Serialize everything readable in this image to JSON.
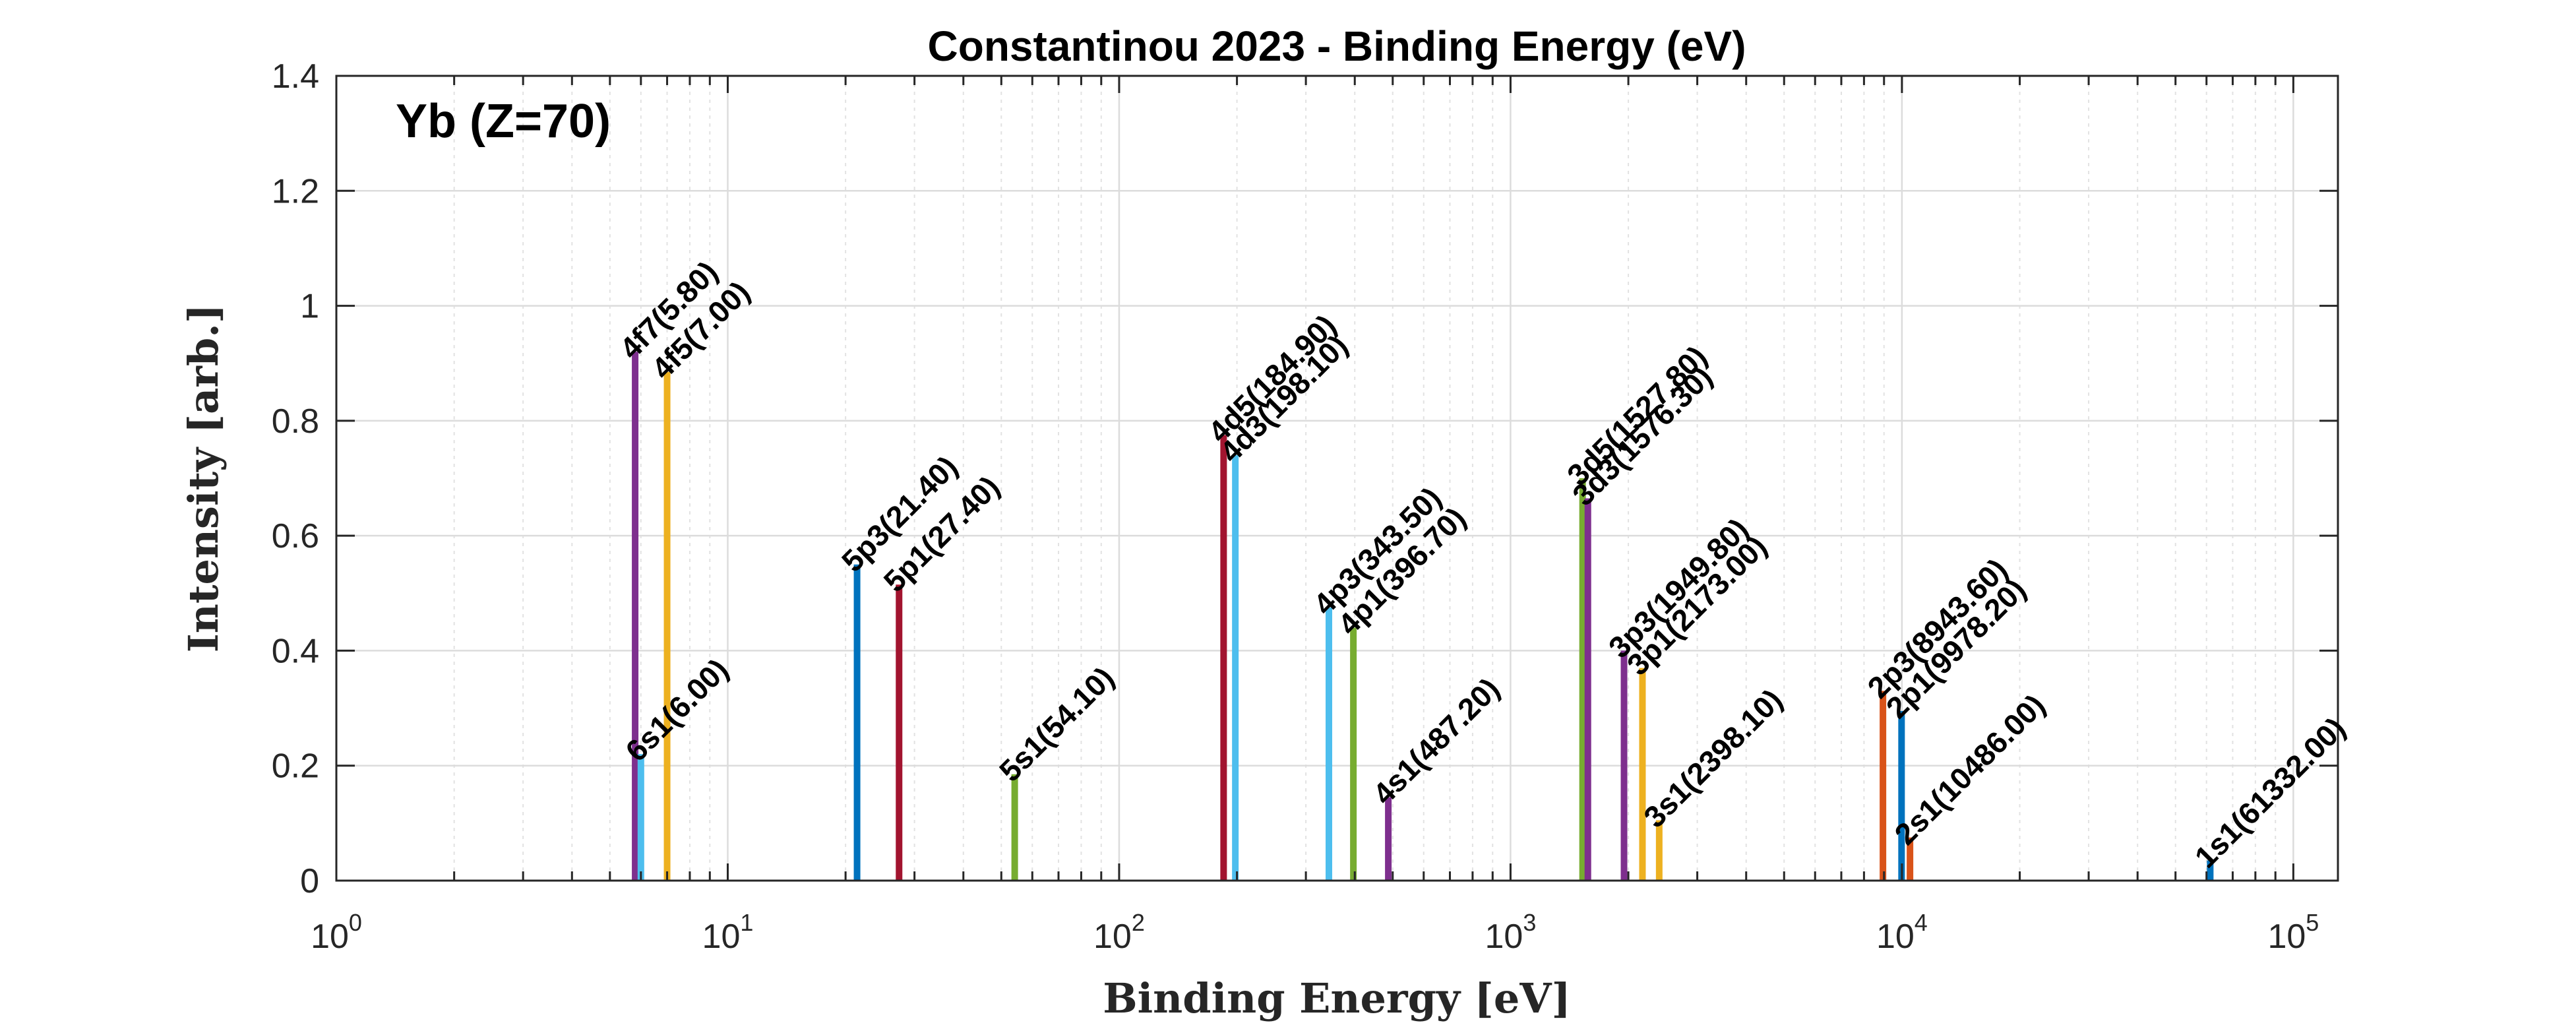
{
  "chart_data": {
    "type": "bar",
    "title": "Constantinou 2023 - Binding Energy (eV)",
    "xlabel": "Binding Energy [eV]",
    "ylabel": "Intensity [arb.]",
    "annotation": "Yb (Z=70)",
    "x_scale": "log",
    "xlim": [
      1,
      130000
    ],
    "ylim": [
      0,
      1.4
    ],
    "grid": true,
    "x_ticks": [
      {
        "value": 1,
        "base": "10",
        "exp": "0"
      },
      {
        "value": 10,
        "base": "10",
        "exp": "1"
      },
      {
        "value": 100,
        "base": "10",
        "exp": "2"
      },
      {
        "value": 1000,
        "base": "10",
        "exp": "3"
      },
      {
        "value": 10000,
        "base": "10",
        "exp": "4"
      },
      {
        "value": 100000,
        "base": "10",
        "exp": "5"
      }
    ],
    "y_ticks": [
      "0",
      "0.2",
      "0.4",
      "0.6",
      "0.8",
      "1",
      "1.2",
      "1.4"
    ],
    "peaks": [
      {
        "label": "4f7(5.80)",
        "x": 5.8,
        "y": 0.92,
        "color": "#7E2F8E"
      },
      {
        "label": "6s1(6.00)",
        "x": 6.0,
        "y": 0.22,
        "color": "#4DBEEE"
      },
      {
        "label": "4f5(7.00)",
        "x": 7.0,
        "y": 0.885,
        "color": "#EDB120"
      },
      {
        "label": "5p3(21.40)",
        "x": 21.4,
        "y": 0.55,
        "color": "#0072BD"
      },
      {
        "label": "5p1(27.40)",
        "x": 27.4,
        "y": 0.515,
        "color": "#A2142F"
      },
      {
        "label": "5s1(54.10)",
        "x": 54.1,
        "y": 0.185,
        "color": "#77AC30"
      },
      {
        "label": "4d5(184.90)",
        "x": 184.9,
        "y": 0.775,
        "color": "#A2142F"
      },
      {
        "label": "4d3(198.10)",
        "x": 198.1,
        "y": 0.74,
        "color": "#4DBEEE"
      },
      {
        "label": "4p3(343.50)",
        "x": 343.5,
        "y": 0.475,
        "color": "#4DBEEE"
      },
      {
        "label": "4p1(396.70)",
        "x": 396.7,
        "y": 0.44,
        "color": "#77AC30"
      },
      {
        "label": "4s1(487.20)",
        "x": 487.2,
        "y": 0.145,
        "color": "#7E2F8E"
      },
      {
        "label": "3d5(1527.80)",
        "x": 1527.8,
        "y": 0.7,
        "color": "#77AC30"
      },
      {
        "label": "3d3(1576.30)",
        "x": 1576.3,
        "y": 0.665,
        "color": "#7E2F8E"
      },
      {
        "label": "3p3(1949.80)",
        "x": 1949.8,
        "y": 0.4,
        "color": "#7E2F8E"
      },
      {
        "label": "3p1(2173.00)",
        "x": 2173.0,
        "y": 0.37,
        "color": "#EDB120"
      },
      {
        "label": "3s1(2398.10)",
        "x": 2398.1,
        "y": 0.105,
        "color": "#EDB120"
      },
      {
        "label": "2p3(8943.60)",
        "x": 8943.6,
        "y": 0.33,
        "color": "#D95319"
      },
      {
        "label": "2p1(9978.20)",
        "x": 9978.2,
        "y": 0.295,
        "color": "#0072BD"
      },
      {
        "label": "2s1(10486.00)",
        "x": 10486.0,
        "y": 0.075,
        "color": "#D95319"
      },
      {
        "label": "1s1(61332.00)",
        "x": 61332.0,
        "y": 0.035,
        "color": "#0072BD"
      }
    ]
  }
}
